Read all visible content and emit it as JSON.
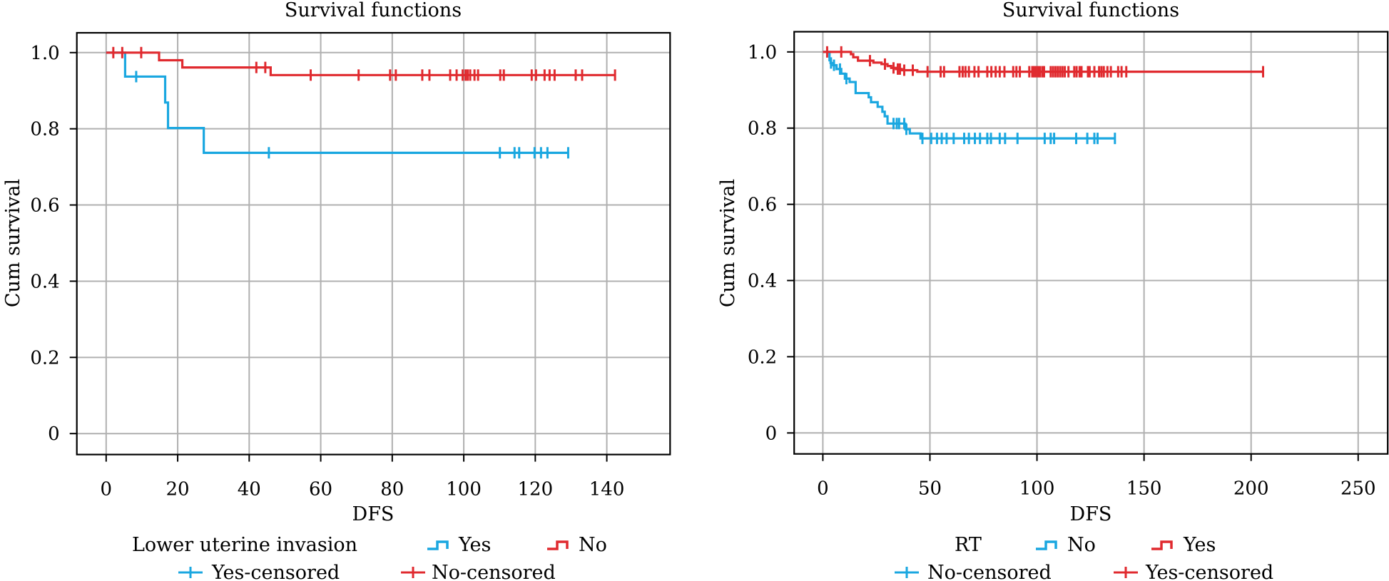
{
  "chart_data": [
    {
      "type": "line",
      "subtype": "kaplan-meier",
      "title": "Survival functions",
      "xlabel": "DFS",
      "ylabel": "Cum survival",
      "xlim": [
        -8.2,
        157.7
      ],
      "ylim": [
        -0.055,
        1.052
      ],
      "xticks": [
        0,
        20,
        40,
        60,
        80,
        100,
        120,
        140
      ],
      "yticks": [
        0,
        0.2,
        0.4,
        0.6,
        0.8,
        1.0
      ],
      "ytick_labels": [
        "0",
        "0.2",
        "0.4",
        "0.6",
        "0.8",
        "1.0"
      ],
      "grid": true,
      "legend": {
        "placement": "bottom",
        "title": "Lower uterine invasion",
        "entries": [
          {
            "label": "Yes",
            "kind": "step",
            "series": 0
          },
          {
            "label": "No",
            "kind": "step",
            "series": 1
          },
          {
            "label": "Yes-censored",
            "kind": "censor",
            "series": 0
          },
          {
            "label": "No-censored",
            "kind": "censor",
            "series": 1
          }
        ]
      },
      "series": [
        {
          "name": "Yes",
          "color": "#1aa7e0",
          "steps": [
            [
              0,
              1.0
            ],
            [
              5.3,
              0.937
            ],
            [
              16.5,
              0.869
            ],
            [
              17.3,
              0.802
            ],
            [
              27.3,
              0.737
            ]
          ],
          "end": 129.2,
          "censored": [
            8.4,
            45.5,
            110.1,
            114.2,
            115.5,
            119.8,
            121.6,
            123.4,
            129.2
          ]
        },
        {
          "name": "No",
          "color": "#e02a2f",
          "steps": [
            [
              0,
              1.0
            ],
            [
              14.8,
              0.98
            ],
            [
              21.3,
              0.961
            ],
            [
              46.0,
              0.941
            ]
          ],
          "end": 142.3,
          "censored": [
            2.0,
            4.5,
            9.8,
            42.0,
            44.5,
            57.2,
            70.6,
            79.4,
            81.0,
            88.4,
            90.4,
            96.2,
            98.0,
            99.7,
            100.5,
            101.1,
            101.8,
            103.0,
            104.0,
            110.2,
            111.2,
            119.0,
            120.2,
            122.6,
            124.0,
            125.4,
            131.3,
            133.1,
            142.3
          ]
        }
      ]
    },
    {
      "type": "line",
      "subtype": "kaplan-meier",
      "title": "Survival functions",
      "xlabel": "DFS",
      "ylabel": "Cum survival",
      "xlim": [
        -13.4,
        263.8
      ],
      "ylim": [
        -0.055,
        1.053
      ],
      "xticks": [
        0,
        50,
        100,
        150,
        200,
        250
      ],
      "yticks": [
        0,
        0.2,
        0.4,
        0.6,
        0.8,
        1.0
      ],
      "ytick_labels": [
        "0",
        "0.2",
        "0.4",
        "0.6",
        "0.8",
        "1.0"
      ],
      "grid": true,
      "legend": {
        "placement": "bottom",
        "title": "RT",
        "entries": [
          {
            "label": "No",
            "kind": "step",
            "series": 0
          },
          {
            "label": "Yes",
            "kind": "step",
            "series": 1
          },
          {
            "label": "No-censored",
            "kind": "censor",
            "series": 0
          },
          {
            "label": "Yes-censored",
            "kind": "censor",
            "series": 1
          }
        ]
      },
      "series": [
        {
          "name": "No",
          "color": "#1aa7e0",
          "steps": [
            [
              0,
              1.0
            ],
            [
              3.1,
              0.978
            ],
            [
              3.6,
              0.971
            ],
            [
              4.8,
              0.965
            ],
            [
              6.4,
              0.955
            ],
            [
              8.6,
              0.943
            ],
            [
              10.3,
              0.93
            ],
            [
              12.5,
              0.921
            ],
            [
              15.3,
              0.892
            ],
            [
              21.4,
              0.881
            ],
            [
              22.5,
              0.868
            ],
            [
              25.6,
              0.856
            ],
            [
              27.8,
              0.843
            ],
            [
              28.9,
              0.831
            ],
            [
              30.2,
              0.812
            ],
            [
              38.5,
              0.797
            ],
            [
              40.6,
              0.786
            ],
            [
              45.6,
              0.773
            ]
          ],
          "end": 136.4,
          "censored": [
            3.8,
            5.2,
            8.0,
            11.0,
            33.0,
            34.5,
            35.6,
            38.0,
            39.0,
            46.5,
            50.6,
            53.3,
            55.5,
            57.8,
            61.1,
            66.0,
            68.2,
            71.0,
            73.4,
            76.8,
            78.5,
            82.6,
            85.1,
            90.9,
            103.6,
            106.4,
            108.0,
            118.3,
            123.5,
            126.8,
            128.3,
            136.4
          ]
        },
        {
          "name": "Yes",
          "color": "#e02a2f",
          "steps": [
            [
              0,
              1.0
            ],
            [
              13.1,
              0.994
            ],
            [
              14.2,
              0.986
            ],
            [
              16.4,
              0.977
            ],
            [
              23.6,
              0.972
            ],
            [
              27.4,
              0.968
            ],
            [
              30.2,
              0.963
            ],
            [
              31.9,
              0.958
            ],
            [
              34.1,
              0.955
            ],
            [
              36.9,
              0.952
            ],
            [
              44.1,
              0.948
            ]
          ],
          "end": 205.6,
          "censored": [
            2.0,
            8.6,
            22.0,
            29.0,
            33.0,
            35.0,
            36.0,
            38.0,
            42.0,
            48.9,
            55.0,
            56.6,
            63.8,
            65.3,
            66.6,
            68.2,
            70.8,
            72.7,
            76.8,
            78.7,
            80.7,
            82.6,
            84.8,
            88.9,
            90.4,
            92.0,
            96.4,
            97.8,
            98.6,
            99.5,
            100.5,
            101.4,
            102.5,
            103.3,
            106.4,
            107.5,
            108.6,
            109.7,
            110.8,
            111.9,
            113.0,
            114.7,
            117.4,
            118.5,
            119.9,
            120.8,
            123.8,
            124.6,
            126.8,
            129.0,
            130.1,
            131.2,
            132.9,
            134.5,
            137.9,
            139.5,
            141.7,
            205.6
          ]
        }
      ]
    }
  ]
}
